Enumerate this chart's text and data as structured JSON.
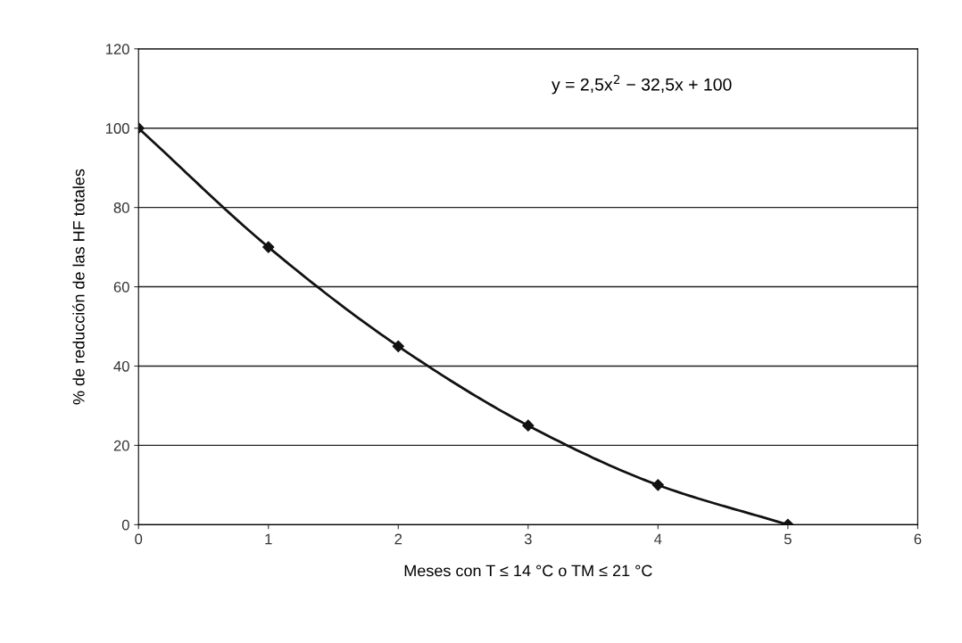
{
  "chart_data": {
    "type": "line",
    "xlabel": "Meses con T ≤ 14 °C o TM ≤ 21 °C",
    "ylabel": "% de reducción de las HF totales",
    "x": [
      0,
      1,
      2,
      3,
      4,
      5
    ],
    "series": [
      {
        "color": "#111111",
        "values": [
          100,
          70,
          45,
          25,
          10,
          0
        ]
      }
    ],
    "xlim": [
      0,
      6
    ],
    "xticks": [
      0,
      1,
      2,
      3,
      4,
      5,
      6
    ],
    "ylim": [
      0,
      120
    ],
    "yticks": [
      0,
      20,
      40,
      60,
      80,
      100,
      120
    ],
    "grid": "y",
    "marker": "diamond",
    "line_style": "solid",
    "legend": false,
    "annotations": [
      "y = 2,5x$^{2}$ − 32,5x + 100"
    ]
  }
}
